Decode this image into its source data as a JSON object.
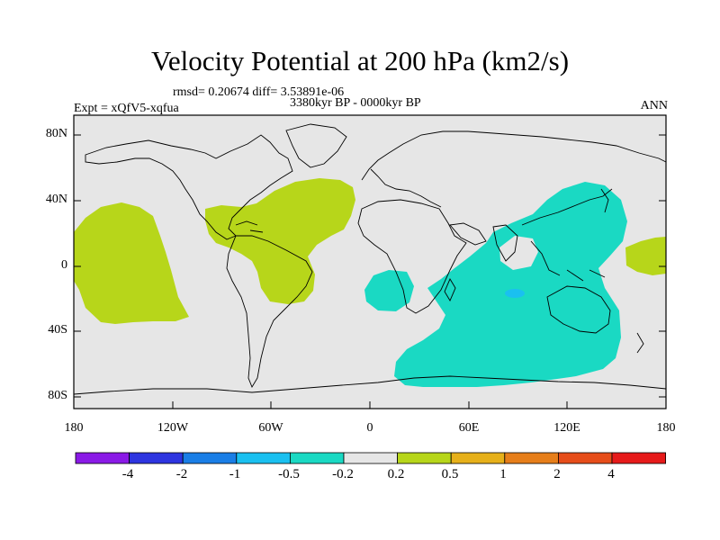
{
  "title": "Velocity Potential at 200 hPa (km2/s)",
  "stats": "rmsd= 0.20674 diff= 3.53891e-06",
  "period": "3380kyr BP - 0000kyr BP",
  "expt": "Expt = xQfV5-xqfua",
  "season": "ANN",
  "lat_labels": [
    "80N",
    "40N",
    "0",
    "40S",
    "80S"
  ],
  "lon_labels": [
    "180",
    "120W",
    "60W",
    "0",
    "60E",
    "120E",
    "180"
  ],
  "colorbar": {
    "colors": [
      "#8a1ae6",
      "#2e35e0",
      "#1a7ee6",
      "#1ac0f0",
      "#1ad9c3",
      "#e6e6e6",
      "#b7d61a",
      "#e6b01a",
      "#e67e1a",
      "#e64d1a",
      "#e61a1a"
    ],
    "labels": [
      "-4",
      "-2",
      "-1",
      "-0.5",
      "-0.2",
      "0.2",
      "0.5",
      "1",
      "2",
      "4"
    ]
  },
  "map_colors": {
    "background": "#e6e6e6",
    "positive": "#b7d61a",
    "negative": "#1ad9c3",
    "strong_negative": "#1ac0f0"
  }
}
